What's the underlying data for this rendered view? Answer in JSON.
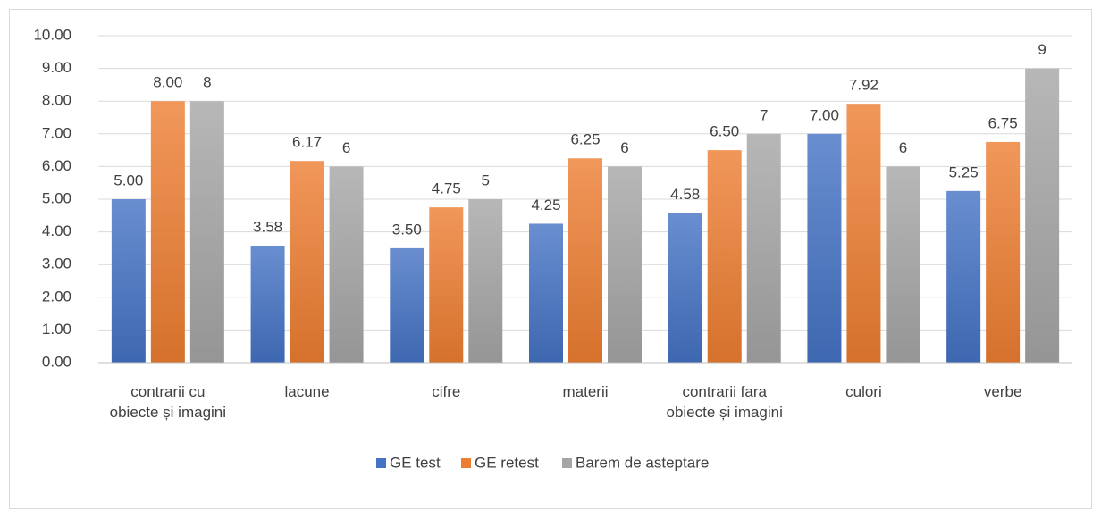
{
  "chart_data": {
    "type": "bar",
    "categories": [
      "contrarii cu obiecte și imagini",
      "lacune",
      "cifre",
      "materii",
      "contrarii fara obiecte și imagini",
      "culori",
      "verbe"
    ],
    "series": [
      {
        "name": "GE test",
        "color": "#4472c4",
        "values": [
          5.0,
          3.58,
          3.5,
          4.25,
          4.58,
          7.0,
          5.25
        ],
        "value_labels": [
          "5.00",
          "3.58",
          "3.50",
          "4.25",
          "4.58",
          "7.00",
          "5.25"
        ]
      },
      {
        "name": "GE retest",
        "color": "#ed7d31",
        "values": [
          8.0,
          6.17,
          4.75,
          6.25,
          6.5,
          7.92,
          6.75
        ],
        "value_labels": [
          "8.00",
          "6.17",
          "4.75",
          "6.25",
          "6.50",
          "7.92",
          "6.75"
        ]
      },
      {
        "name": "Barem de asteptare",
        "color": "#a5a5a5",
        "values": [
          8,
          6,
          5,
          6,
          7,
          6,
          9
        ]
      }
    ],
    "ylim": [
      0,
      10
    ],
    "yticks": [
      {
        "value": 0,
        "label": "0.00"
      },
      {
        "value": 1,
        "label": "1.00"
      },
      {
        "value": 2,
        "label": "2.00"
      },
      {
        "value": 3,
        "label": "3.00"
      },
      {
        "value": 4,
        "label": "4.00"
      },
      {
        "value": 5,
        "label": "5.00"
      },
      {
        "value": 6,
        "label": "6.00"
      },
      {
        "value": 7,
        "label": "7.00"
      },
      {
        "value": 8,
        "label": "8.00"
      },
      {
        "value": 9,
        "label": "9.00"
      },
      {
        "value": 10,
        "label": "10.00"
      }
    ],
    "grid": true,
    "legend": "bottom"
  }
}
